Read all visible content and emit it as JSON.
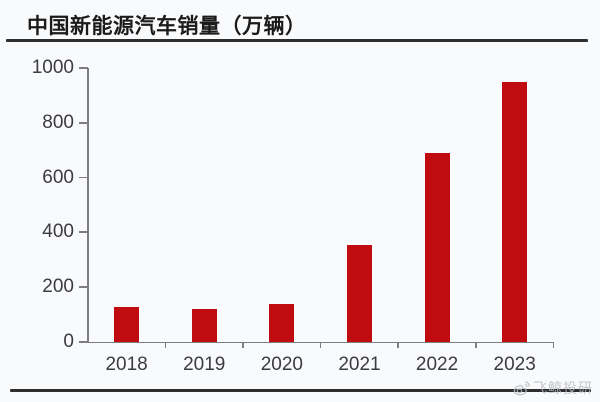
{
  "title": "中国新能源汽车销量（万辆）",
  "colors": {
    "bar": "#c00c10",
    "background": "#f9fafc",
    "rule": "#2e2e2e",
    "axis": "#7d7d82",
    "watermark": "#b9bcc4"
  },
  "watermark": {
    "icon": "weibo-eye-icon",
    "label": "飞鲸投研"
  },
  "chart_data": {
    "type": "bar",
    "title": "中国新能源汽车销量（万辆）",
    "categories": [
      "2018",
      "2019",
      "2020",
      "2021",
      "2022",
      "2023"
    ],
    "values": [
      126,
      121,
      137,
      352,
      689,
      949
    ],
    "xlabel": "",
    "ylabel": "",
    "ylim": [
      0,
      1000
    ],
    "yticks": [
      0,
      200,
      400,
      600,
      800,
      1000
    ],
    "grid": false,
    "legend": null,
    "bar_color": "#c00c10"
  }
}
